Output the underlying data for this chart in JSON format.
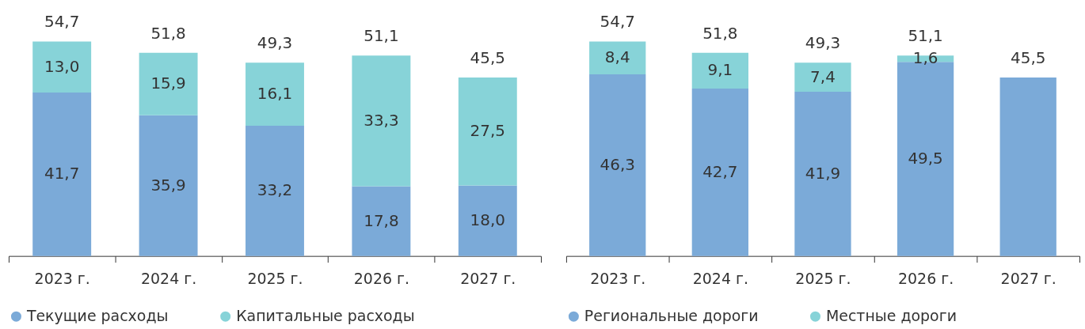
{
  "chart_data": [
    {
      "type": "bar",
      "stacked": true,
      "categories": [
        "2023 г.",
        "2024 г.",
        "2025 г.",
        "2026 г.",
        "2027 г."
      ],
      "tick_labels": "x",
      "legend": "bottom",
      "series": [
        {
          "name": "Текущие расходы",
          "color": "#7baad8",
          "values": [
            41.7,
            35.9,
            33.2,
            17.8,
            18.0
          ],
          "value_labels": [
            "41,7",
            "35,9",
            "33,2",
            "17,8",
            "18,0"
          ]
        },
        {
          "name": "Капитальные расходы",
          "color": "#87d3d8",
          "values": [
            13.0,
            15.9,
            16.1,
            33.3,
            27.5
          ],
          "value_labels": [
            "13,0",
            "15,9",
            "16,1",
            "33,3",
            "27,5"
          ]
        }
      ],
      "totals": [
        "54,7",
        "51,8",
        "49,3",
        "51,1",
        "45,5"
      ]
    },
    {
      "type": "bar",
      "stacked": true,
      "categories": [
        "2023 г.",
        "2024 г.",
        "2025 г.",
        "2026 г.",
        "2027 г."
      ],
      "tick_labels": "x",
      "legend": "bottom",
      "series": [
        {
          "name": "Региональные дороги",
          "color": "#7baad8",
          "values": [
            46.3,
            42.7,
            41.9,
            49.5,
            45.5
          ],
          "value_labels": [
            "46,3",
            "42,7",
            "41,9",
            "49,5",
            null
          ]
        },
        {
          "name": "Местные дороги",
          "color": "#87d3d8",
          "values": [
            8.4,
            9.1,
            7.4,
            1.6,
            null
          ],
          "value_labels": [
            "8,4",
            "9,1",
            "7,4",
            "1,6",
            null
          ]
        }
      ],
      "totals": [
        "54,7",
        "51,8",
        "49,3",
        "51,1",
        "45,5"
      ]
    }
  ]
}
